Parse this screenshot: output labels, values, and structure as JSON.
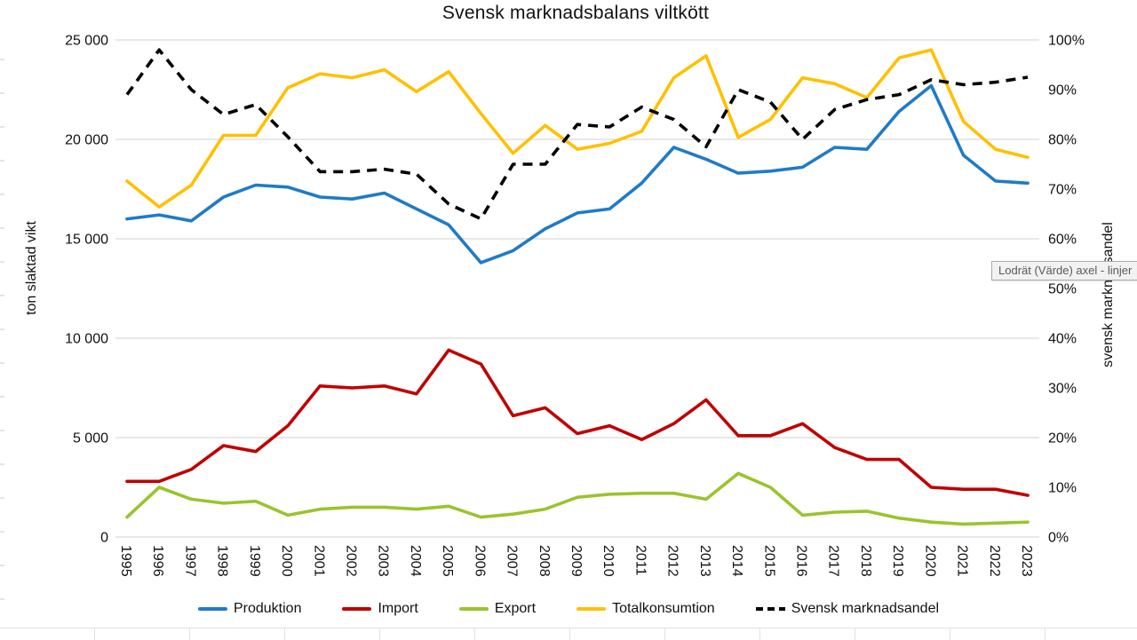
{
  "tooltip": {
    "text": "Lodrät (Värde) axel - linjer"
  },
  "chart_data": {
    "type": "line",
    "title": "Svensk marknadsbalans viltkött",
    "ylabel_left": "ton slaktad vikt",
    "ylabel_right": "svensk marknadsandel",
    "grid": true,
    "legend_position": "bottom",
    "x": [
      1995,
      1996,
      1997,
      1998,
      1999,
      2000,
      2001,
      2002,
      2003,
      2004,
      2005,
      2006,
      2007,
      2008,
      2009,
      2010,
      2011,
      2012,
      2013,
      2014,
      2015,
      2016,
      2017,
      2018,
      2019,
      2020,
      2021,
      2022,
      2023
    ],
    "ylim_left": [
      0,
      25000
    ],
    "left_ticks": [
      "0",
      "5 000",
      "10 000",
      "15 000",
      "20 000",
      "25 000"
    ],
    "ylim_right": [
      0,
      100
    ],
    "right_ticks": [
      "0%",
      "10%",
      "20%",
      "30%",
      "40%",
      "50%",
      "60%",
      "70%",
      "80%",
      "90%",
      "100%"
    ],
    "series": [
      {
        "name": "Produktion",
        "axis": "left",
        "color": "#1F7BC7",
        "dash": false,
        "values": [
          16000,
          16200,
          15900,
          17100,
          17700,
          17600,
          17100,
          17000,
          17300,
          16500,
          15700,
          13800,
          14400,
          15500,
          16300,
          16500,
          17800,
          19600,
          19000,
          18300,
          18400,
          18600,
          19600,
          19500,
          21400,
          22700,
          19200,
          17900,
          17800
        ]
      },
      {
        "name": "Import",
        "axis": "left",
        "color": "#C00000",
        "dash": false,
        "values": [
          2800,
          2800,
          3400,
          4600,
          4300,
          5600,
          7600,
          7500,
          7600,
          7200,
          9400,
          8700,
          6100,
          6500,
          5200,
          5600,
          4900,
          5700,
          6900,
          5100,
          5100,
          5700,
          4500,
          3900,
          3900,
          2500,
          2400,
          2400,
          2100
        ]
      },
      {
        "name": "Export",
        "axis": "left",
        "color": "#9BC32E",
        "dash": false,
        "values": [
          1000,
          2500,
          1900,
          1700,
          1800,
          1100,
          1400,
          1500,
          1500,
          1400,
          1550,
          1000,
          1150,
          1400,
          2000,
          2150,
          2200,
          2200,
          1900,
          3200,
          2500,
          1100,
          1250,
          1300,
          950,
          750,
          650,
          700,
          750
        ]
      },
      {
        "name": "Totalkonsumtion",
        "axis": "left",
        "color": "#FFC000",
        "dash": false,
        "values": [
          17900,
          16600,
          17700,
          20200,
          20200,
          22600,
          23300,
          23100,
          23500,
          22400,
          23400,
          21300,
          19300,
          20700,
          19500,
          19800,
          20400,
          23100,
          24200,
          20100,
          21000,
          23100,
          22800,
          22100,
          24100,
          24500,
          20900,
          19500,
          19100
        ]
      },
      {
        "name": "Svensk marknadsandel",
        "axis": "right",
        "color": "#000000",
        "dash": true,
        "values": [
          89,
          98,
          90,
          85,
          87,
          80.5,
          73.5,
          73.5,
          74,
          73,
          67,
          64,
          75,
          75,
          83,
          82.5,
          86.5,
          84,
          78.5,
          90,
          87.5,
          80,
          86,
          88,
          89,
          92,
          91,
          91.5,
          92.5
        ]
      }
    ]
  }
}
